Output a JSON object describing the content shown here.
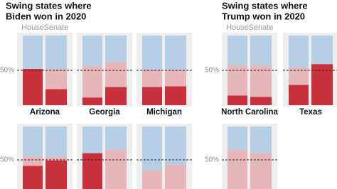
{
  "chart_data": {
    "type": "bar",
    "stacked": true,
    "colors": [
      "#c8313c",
      "#e7b6bb",
      "#b6cfe4"
    ],
    "ylim": [
      0,
      100
    ],
    "yticks": [
      {
        "value": 50,
        "label": "50%"
      }
    ],
    "groups": [
      {
        "title_lines": [
          "Swing states where",
          "Biden won in 2020"
        ],
        "bar_labels": [
          "House",
          "Senate"
        ],
        "rows": [
          [
            {
              "label": "Arizona",
              "bars": [
                [
                  52,
                  0,
                  48
                ],
                [
                  23,
                  29,
                  48
                ]
              ]
            },
            {
              "label": "Georgia",
              "bars": [
                [
                  11,
                  45,
                  44
                ],
                [
                  26,
                  36,
                  38
                ]
              ]
            },
            {
              "label": "Michigan",
              "bars": [
                [
                  26,
                  25,
                  49
                ],
                [
                  27,
                  24,
                  49
                ]
              ]
            }
          ],
          [
            {
              "label": null,
              "bars": [
                [
                  41,
                  14,
                  45
                ],
                [
                  49,
                  6,
                  45
                ]
              ]
            },
            {
              "label": null,
              "bars": [
                [
                  60,
                  0,
                  40
                ],
                [
                  0,
                  65,
                  35
                ]
              ]
            },
            {
              "label": null,
              "bars": [
                [
                  0,
                  34,
                  66
                ],
                [
                  0,
                  43,
                  57
                ]
              ]
            }
          ]
        ]
      },
      {
        "title_lines": [
          "Swing states where",
          "Trump won in 2020"
        ],
        "bar_labels": [
          "House",
          "Senate"
        ],
        "rows": [
          [
            {
              "label": "North Carolina",
              "bars": [
                [
                  14,
                  43,
                  43
                ],
                [
                  12,
                  45,
                  43
                ]
              ]
            },
            {
              "label": "Texas",
              "bars": [
                [
                  29,
                  25,
                  46
                ],
                [
                  59,
                  0,
                  41
                ]
              ]
            }
          ],
          [
            {
              "label": null,
              "bars": [
                [
                  0,
                  65,
                  35
                ],
                [
                  0,
                  60,
                  40
                ]
              ]
            }
          ]
        ]
      }
    ]
  }
}
